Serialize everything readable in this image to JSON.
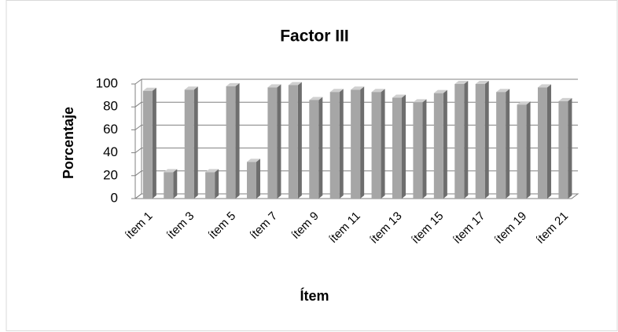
{
  "chart_data": {
    "type": "bar",
    "title": "Factor III",
    "x_label": "Ítem",
    "y_label": "Porcentaje",
    "categories": [
      "ítem 1",
      null,
      "ítem 3",
      null,
      "ítem 5",
      null,
      "ítem 7",
      null,
      "ítem 9",
      null,
      "ítem 11",
      null,
      "ítem 13",
      null,
      "ítem 15",
      null,
      "ítem 17",
      null,
      "ítem 19",
      null,
      "ítem 21"
    ],
    "values": [
      94,
      23,
      95,
      23,
      98,
      32,
      97,
      99,
      86,
      93,
      95,
      93,
      88,
      84,
      92,
      100,
      100,
      93,
      82,
      97,
      85
    ],
    "color": "#a6a6a6",
    "ylim": [
      0,
      100
    ],
    "yticks": [
      0,
      20,
      40,
      60,
      80,
      100
    ],
    "grid": true
  }
}
